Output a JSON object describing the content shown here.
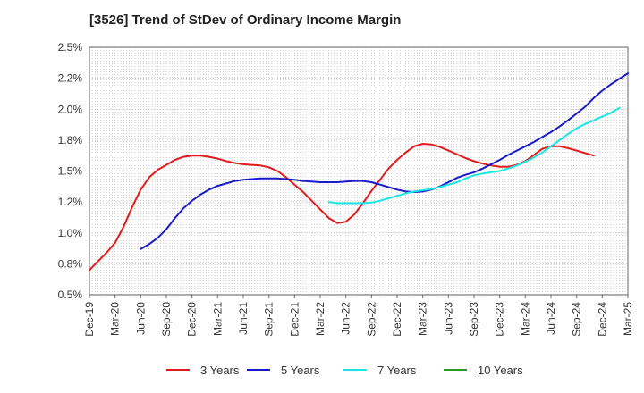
{
  "chart_data": {
    "type": "line",
    "title": "[3526]  Trend of StDev of Ordinary Income Margin",
    "xlabel": "",
    "ylabel": "",
    "x_ticks": [
      "Dec-19",
      "Mar-20",
      "Jun-20",
      "Sep-20",
      "Dec-20",
      "Mar-21",
      "Jun-21",
      "Sep-21",
      "Dec-21",
      "Mar-22",
      "Jun-22",
      "Sep-22",
      "Dec-22",
      "Mar-23",
      "Jun-23",
      "Sep-23",
      "Dec-23",
      "Mar-24",
      "Jun-24",
      "Sep-24",
      "Dec-24",
      "Mar-25"
    ],
    "y_ticks": [
      "0.5%",
      "0.8%",
      "1.0%",
      "1.2%",
      "1.5%",
      "1.8%",
      "2.0%",
      "2.2%",
      "2.5%"
    ],
    "ylim": [
      0.5,
      2.5
    ],
    "grid": true,
    "legend_position": "bottom",
    "series": [
      {
        "name": "3 Years",
        "color": "#e31a1c",
        "values": [
          0.7,
          0.77,
          0.84,
          0.92,
          1.05,
          1.21,
          1.35,
          1.45,
          1.51,
          1.55,
          1.59,
          1.615,
          1.625,
          1.625,
          1.615,
          1.6,
          1.58,
          1.565,
          1.555,
          1.55,
          1.545,
          1.53,
          1.5,
          1.45,
          1.39,
          1.33,
          1.26,
          1.19,
          1.12,
          1.08,
          1.09,
          1.15,
          1.24,
          1.34,
          1.43,
          1.52,
          1.59,
          1.65,
          1.7,
          1.72,
          1.715,
          1.695,
          1.665,
          1.635,
          1.605,
          1.58,
          1.56,
          1.545,
          1.535,
          1.535,
          1.55,
          1.58,
          1.63,
          1.68,
          1.7,
          1.7,
          1.685,
          1.665,
          1.645,
          1.625
        ]
      },
      {
        "name": "5 Years",
        "color": "#1a1ac8",
        "values": [
          null,
          null,
          null,
          null,
          null,
          null,
          0.87,
          0.91,
          0.96,
          1.03,
          1.12,
          1.2,
          1.26,
          1.31,
          1.35,
          1.38,
          1.4,
          1.42,
          1.43,
          1.435,
          1.44,
          1.44,
          1.44,
          1.435,
          1.43,
          1.42,
          1.415,
          1.41,
          1.41,
          1.41,
          1.415,
          1.42,
          1.42,
          1.41,
          1.39,
          1.37,
          1.35,
          1.335,
          1.33,
          1.335,
          1.35,
          1.375,
          1.41,
          1.445,
          1.47,
          1.49,
          1.52,
          1.555,
          1.59,
          1.63,
          1.665,
          1.7,
          1.735,
          1.775,
          1.815,
          1.86,
          1.91,
          1.965,
          2.02,
          2.09,
          2.15,
          2.2,
          2.245,
          2.29
        ]
      },
      {
        "name": "7 Years",
        "color": "#1ae6e6",
        "values": [
          null,
          null,
          null,
          null,
          null,
          null,
          null,
          null,
          null,
          null,
          null,
          null,
          null,
          null,
          null,
          null,
          null,
          null,
          null,
          null,
          null,
          null,
          null,
          null,
          null,
          null,
          null,
          null,
          1.25,
          1.24,
          1.24,
          1.24,
          1.24,
          1.245,
          1.26,
          1.28,
          1.3,
          1.32,
          1.335,
          1.345,
          1.355,
          1.37,
          1.39,
          1.41,
          1.44,
          1.465,
          1.48,
          1.49,
          1.5,
          1.52,
          1.545,
          1.575,
          1.61,
          1.65,
          1.7,
          1.75,
          1.8,
          1.845,
          1.88,
          1.91,
          1.94,
          1.97,
          2.01
        ]
      },
      {
        "name": "10 Years",
        "color": "#2a9a2a",
        "values": []
      }
    ]
  }
}
